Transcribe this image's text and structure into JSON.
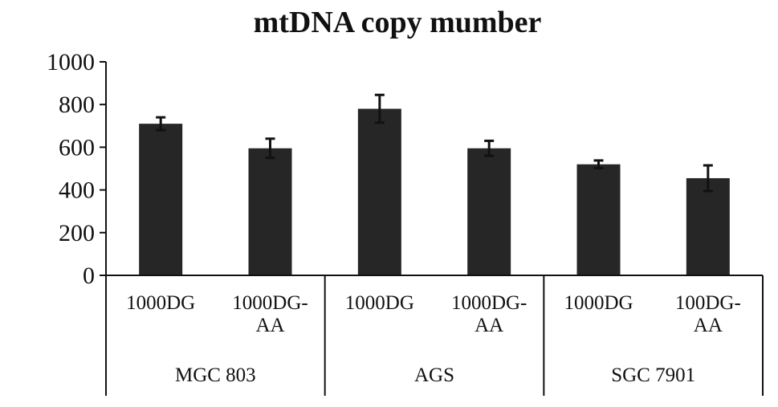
{
  "chart_data": {
    "type": "bar",
    "title": "mtDNA copy mumber",
    "xlabel": "",
    "ylabel": "",
    "ylim": [
      0,
      1000
    ],
    "yticks": [
      "0",
      "200",
      "400",
      "600",
      "800",
      "1000"
    ],
    "grid": false,
    "legend": "none",
    "bar_color": "#262626",
    "groups": [
      {
        "name": "MGC 803",
        "bars": [
          {
            "label_lines": [
              "1000DG"
            ],
            "value": 710,
            "error": 30
          },
          {
            "label_lines": [
              "1000DG-",
              "AA"
            ],
            "value": 595,
            "error": 45
          }
        ]
      },
      {
        "name": "AGS",
        "bars": [
          {
            "label_lines": [
              "1000DG"
            ],
            "value": 780,
            "error": 65
          },
          {
            "label_lines": [
              "1000DG-",
              "AA"
            ],
            "value": 595,
            "error": 35
          }
        ]
      },
      {
        "name": "SGC 7901",
        "bars": [
          {
            "label_lines": [
              "1000DG"
            ],
            "value": 520,
            "error": 18
          },
          {
            "label_lines": [
              "100DG-",
              "AA"
            ],
            "value": 455,
            "error": 60
          }
        ]
      }
    ]
  }
}
